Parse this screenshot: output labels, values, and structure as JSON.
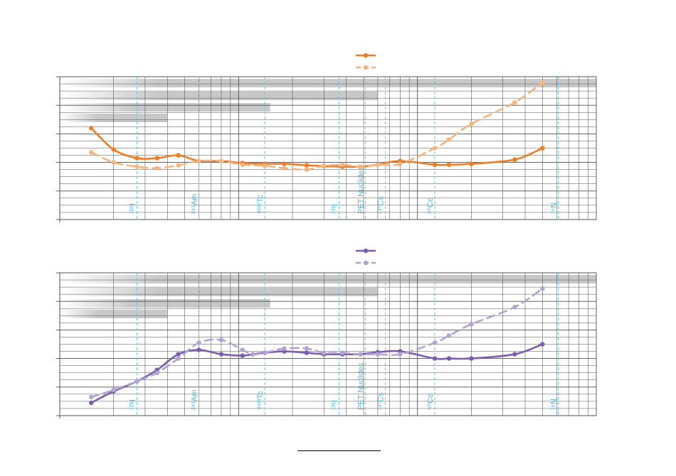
{
  "chart_data": [
    {
      "type": "line",
      "title": "",
      "xlabel": "",
      "ylabel": "",
      "x_scale": "log",
      "x_range": [
        10,
        10000
      ],
      "y_range": [
        0,
        5
      ],
      "grid": true,
      "legend_position": "top-center",
      "series": [
        {
          "line_style": "solid",
          "color": "#ee7d27",
          "x": [
            15,
            20,
            27,
            35,
            46,
            60,
            80,
            105,
            140,
            180,
            240,
            300,
            380,
            480,
            600,
            800,
            1250,
            1500,
            2000,
            3500,
            5000
          ],
          "y": [
            3.2,
            2.45,
            2.15,
            2.15,
            2.25,
            2.05,
            2.05,
            1.98,
            1.95,
            1.95,
            1.9,
            1.87,
            1.85,
            1.85,
            1.92,
            2.05,
            1.92,
            1.92,
            1.95,
            2.1,
            2.5
          ]
        },
        {
          "line_style": "dashed",
          "color": "#f5b57f",
          "x": [
            15,
            20,
            27,
            35,
            46,
            60,
            80,
            105,
            140,
            180,
            240,
            300,
            380,
            480,
            600,
            800,
            1250,
            1500,
            2000,
            3500,
            5000
          ],
          "y": [
            2.35,
            2.0,
            1.85,
            1.8,
            1.9,
            2.05,
            2.05,
            1.92,
            1.88,
            1.8,
            1.75,
            1.88,
            1.92,
            1.85,
            1.92,
            1.95,
            2.5,
            2.8,
            3.35,
            4.1,
            4.8
          ]
        }
      ],
      "reference_lines": [
        {
          "x": 27,
          "label": "¹²⁵I"
        },
        {
          "x": 60,
          "label": "²⁴¹Am"
        },
        {
          "x": 140,
          "label": "⁹⁹ᵐTc"
        },
        {
          "x": 364,
          "label": "¹³¹I"
        },
        {
          "x": 511,
          "label": "PET Nuclides"
        },
        {
          "x": 662,
          "label": "¹³⁷Cs"
        },
        {
          "x": 1250,
          "label": "⁶⁰Co"
        },
        {
          "x": 6130,
          "label": "¹⁶N"
        }
      ],
      "shaded_bands": [
        {
          "x_from": 10,
          "x_to": 10000
        },
        {
          "x_from": 10,
          "x_to": 600
        },
        {
          "x_from": 10,
          "x_to": 150
        },
        {
          "x_from": 10,
          "x_to": 40
        }
      ]
    },
    {
      "type": "line",
      "title": "",
      "xlabel": "",
      "ylabel": "",
      "x_scale": "log",
      "x_range": [
        10,
        10000
      ],
      "y_range": [
        0,
        5
      ],
      "grid": true,
      "legend_position": "top-center",
      "series": [
        {
          "line_style": "solid",
          "color": "#7b5fad",
          "x": [
            15,
            20,
            27,
            35,
            46,
            60,
            80,
            105,
            120,
            140,
            180,
            240,
            300,
            380,
            480,
            600,
            800,
            1250,
            1500,
            2000,
            3500,
            5000
          ],
          "y": [
            0.45,
            0.85,
            1.2,
            1.6,
            2.15,
            2.3,
            2.15,
            2.1,
            2.15,
            2.2,
            2.25,
            2.2,
            2.15,
            2.15,
            2.15,
            2.22,
            2.25,
            2.0,
            2.0,
            2.0,
            2.15,
            2.5
          ]
        },
        {
          "line_style": "dashed",
          "color": "#b3a3d2",
          "x": [
            15,
            20,
            27,
            35,
            46,
            60,
            80,
            105,
            120,
            140,
            180,
            240,
            300,
            380,
            480,
            600,
            800,
            1250,
            1500,
            2000,
            3500,
            5000
          ],
          "y": [
            0.65,
            0.9,
            1.2,
            1.5,
            2.0,
            2.55,
            2.65,
            2.3,
            2.15,
            2.2,
            2.35,
            2.35,
            2.2,
            2.2,
            2.15,
            2.15,
            2.15,
            2.55,
            2.8,
            3.2,
            3.8,
            4.45
          ]
        }
      ],
      "reference_lines": [
        {
          "x": 27,
          "label": "¹²⁵I"
        },
        {
          "x": 60,
          "label": "²⁴¹Am"
        },
        {
          "x": 140,
          "label": "⁹⁹ᵐTc"
        },
        {
          "x": 364,
          "label": "¹³¹I"
        },
        {
          "x": 511,
          "label": "PET Nuclides"
        },
        {
          "x": 662,
          "label": "¹³⁷Cs"
        },
        {
          "x": 1250,
          "label": "⁶⁰Co"
        },
        {
          "x": 6130,
          "label": "¹⁶N"
        }
      ],
      "shaded_bands": [
        {
          "x_from": 10,
          "x_to": 10000
        },
        {
          "x_from": 10,
          "x_to": 600
        },
        {
          "x_from": 10,
          "x_to": 150
        },
        {
          "x_from": 10,
          "x_to": 40
        }
      ]
    }
  ],
  "colors": {
    "reference_line": "#69c4e2",
    "reference_label": "#4fb7dc",
    "band": "#c8c8c8",
    "grid": "#505050"
  }
}
